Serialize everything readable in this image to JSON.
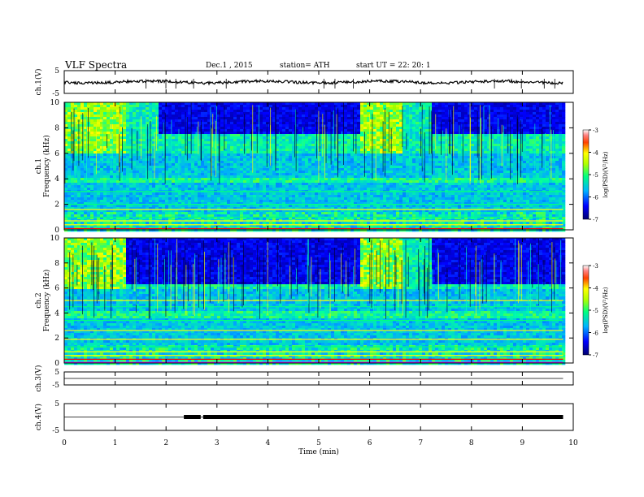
{
  "header": {
    "title": "VLF  Spectra",
    "date": "Dec.1  , 2015",
    "station": "station= ATH",
    "start": "start  UT  =    22: 20: 1"
  },
  "chart_data": {
    "type": "heatmap",
    "x_axis": {
      "label": "Time  (min)",
      "range": [
        0,
        10
      ],
      "ticks": [
        "0",
        "1",
        "2",
        "3",
        "4",
        "5",
        "6",
        "7",
        "8",
        "9",
        "10"
      ],
      "data_extent_min": 9.8
    },
    "panels": [
      {
        "id": "ch1_wave",
        "kind": "line",
        "ylabel": "ch.1(V)",
        "yticks": [
          "5",
          "-5"
        ],
        "ylim": [
          -5,
          5
        ],
        "baseline": 0.0
      },
      {
        "id": "ch1_spec",
        "kind": "spectrogram",
        "ylabel": "Frequency  (kHz)",
        "channel_label": "ch.1",
        "yticks": [
          "0",
          "2",
          "4",
          "6",
          "8",
          "10"
        ],
        "ylim": [
          0,
          10
        ],
        "colorbar": {
          "label": "log(PSD)(V²/Hz)",
          "ticks": [
            "-3",
            "-4",
            "-5",
            "-6",
            "-7"
          ],
          "range": [
            -7,
            -3
          ]
        }
      },
      {
        "id": "ch2_spec",
        "kind": "spectrogram",
        "ylabel": "Frequency  (kHz)",
        "channel_label": "ch.2",
        "yticks": [
          "0",
          "2",
          "4",
          "6",
          "8",
          "10"
        ],
        "ylim": [
          0,
          10
        ],
        "colorbar": {
          "label": "log(PSD)(V²/Hz)",
          "ticks": [
            "-3",
            "-4",
            "-5",
            "-6",
            "-7"
          ],
          "range": [
            -7,
            -3
          ]
        }
      },
      {
        "id": "ch3_wave",
        "kind": "line",
        "ylabel": "ch.3(V)",
        "yticks": [
          "5",
          "-5"
        ],
        "ylim": [
          -5,
          5
        ],
        "baseline": 0.0
      },
      {
        "id": "ch4_wave",
        "kind": "line",
        "ylabel": "ch.4(V)",
        "yticks": [
          "5",
          "-5"
        ],
        "ylim": [
          -5,
          5
        ],
        "baseline": 0.0,
        "thick_segments": [
          [
            2.35,
            2.68
          ],
          [
            2.73,
            9.8
          ]
        ]
      }
    ],
    "colors": {
      "axis": "#000000",
      "spectrum_low": "#00008c",
      "spectrum_mid": "#00b4ff",
      "spectrum_high": "#ffff00",
      "spectrum_peak": "#ff0000"
    }
  }
}
